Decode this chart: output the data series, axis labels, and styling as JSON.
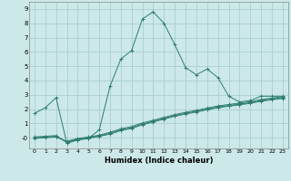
{
  "xlabel": "Humidex (Indice chaleur)",
  "bg_color": "#cce8e8",
  "line_color": "#2e7d6e",
  "grid_color": "#aacece",
  "xlim": [
    -0.5,
    23.5
  ],
  "ylim": [
    -0.75,
    9.5
  ],
  "xticks": [
    0,
    1,
    2,
    3,
    4,
    5,
    6,
    7,
    8,
    9,
    10,
    11,
    12,
    13,
    14,
    15,
    16,
    17,
    18,
    19,
    20,
    21,
    22,
    23
  ],
  "yticks": [
    0,
    1,
    2,
    3,
    4,
    5,
    6,
    7,
    8,
    9
  ],
  "ytick_labels": [
    "-0",
    "1",
    "2",
    "3",
    "4",
    "5",
    "6",
    "7",
    "8",
    "9"
  ],
  "series": [
    {
      "x": [
        0,
        1,
        2,
        3,
        4,
        5,
        6,
        7,
        8,
        9,
        10,
        11,
        12,
        13,
        14,
        15,
        16,
        17,
        18,
        19,
        20,
        21,
        22,
        23
      ],
      "y": [
        1.7,
        2.1,
        2.8,
        -0.4,
        -0.15,
        -0.05,
        0.55,
        3.6,
        5.5,
        6.1,
        8.3,
        8.8,
        8.0,
        6.5,
        4.9,
        4.4,
        4.8,
        4.2,
        2.9,
        2.5,
        2.6,
        2.9,
        2.9,
        2.9
      ]
    },
    {
      "x": [
        0,
        1,
        2,
        3,
        4,
        5,
        6,
        7,
        8,
        9,
        10,
        11,
        12,
        13,
        14,
        15,
        16,
        17,
        18,
        19,
        20,
        21,
        22,
        23
      ],
      "y": [
        0.05,
        0.1,
        0.15,
        -0.35,
        -0.15,
        -0.05,
        0.1,
        0.25,
        0.5,
        0.65,
        0.9,
        1.1,
        1.3,
        1.5,
        1.65,
        1.8,
        1.95,
        2.1,
        2.2,
        2.3,
        2.4,
        2.55,
        2.65,
        2.75
      ]
    },
    {
      "x": [
        0,
        1,
        2,
        3,
        4,
        5,
        6,
        7,
        8,
        9,
        10,
        11,
        12,
        13,
        14,
        15,
        16,
        17,
        18,
        19,
        20,
        21,
        22,
        23
      ],
      "y": [
        0.0,
        0.05,
        0.1,
        -0.3,
        -0.1,
        0.0,
        0.12,
        0.3,
        0.55,
        0.7,
        0.95,
        1.15,
        1.35,
        1.55,
        1.7,
        1.85,
        2.0,
        2.15,
        2.25,
        2.35,
        2.45,
        2.6,
        2.7,
        2.8
      ]
    },
    {
      "x": [
        0,
        1,
        2,
        3,
        4,
        5,
        6,
        7,
        8,
        9,
        10,
        11,
        12,
        13,
        14,
        15,
        16,
        17,
        18,
        19,
        20,
        21,
        22,
        23
      ],
      "y": [
        -0.05,
        0.0,
        0.05,
        -0.25,
        -0.05,
        0.05,
        0.18,
        0.38,
        0.62,
        0.78,
        1.03,
        1.22,
        1.42,
        1.62,
        1.77,
        1.92,
        2.07,
        2.22,
        2.32,
        2.42,
        2.52,
        2.67,
        2.77,
        2.87
      ]
    }
  ]
}
